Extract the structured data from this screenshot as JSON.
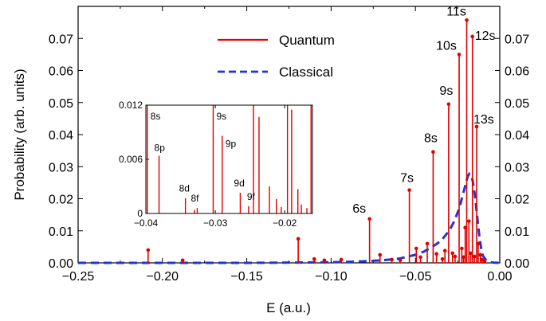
{
  "chart_data": {
    "type": "line",
    "xlabel": "E (a.u.)",
    "ylabel": "Probability (arb. units)",
    "xlim": [
      -0.25,
      0.0
    ],
    "ylim": [
      0.0,
      0.08
    ],
    "x_ticks": [
      -0.25,
      -0.2,
      -0.15,
      -0.1,
      -0.05,
      0.0
    ],
    "x_tick_labels": [
      "−0.25",
      "−0.20",
      "−0.15",
      "−0.10",
      "−0.05",
      "0.00"
    ],
    "y_ticks": [
      0.0,
      0.01,
      0.02,
      0.03,
      0.04,
      0.05,
      0.06,
      0.07
    ],
    "y_tick_labels": [
      "0.00",
      "0.01",
      "0.02",
      "0.03",
      "0.04",
      "0.05",
      "0.06",
      "0.07"
    ],
    "right_axis_mirrored": true,
    "grid": false,
    "legend_position": "top-center",
    "series": [
      {
        "name": "Quantum",
        "style": "stem",
        "color": "#e00000",
        "labeled_peaks": [
          {
            "label": "6s",
            "x": -0.0772,
            "y": 0.0137
          },
          {
            "label": "7s",
            "x": -0.0536,
            "y": 0.0227
          },
          {
            "label": "8s",
            "x": -0.0395,
            "y": 0.0346
          },
          {
            "label": "9s",
            "x": -0.0303,
            "y": 0.0495
          },
          {
            "label": "10s",
            "x": -0.0241,
            "y": 0.065
          },
          {
            "label": "11s",
            "x": -0.0196,
            "y": 0.0757
          },
          {
            "label": "12s",
            "x": -0.0162,
            "y": 0.0706
          },
          {
            "label": "13s",
            "x": -0.0137,
            "y": 0.0425
          }
        ],
        "other_stems": [
          {
            "x": -0.2085,
            "y": 0.004
          },
          {
            "x": -0.188,
            "y": 0.0008
          },
          {
            "x": -0.1195,
            "y": 0.0075
          },
          {
            "x": -0.11,
            "y": 0.0012
          },
          {
            "x": -0.104,
            "y": 0.0008
          },
          {
            "x": -0.094,
            "y": 0.001
          },
          {
            "x": -0.071,
            "y": 0.0025
          },
          {
            "x": -0.064,
            "y": 0.001
          },
          {
            "x": -0.059,
            "y": 0.0008
          },
          {
            "x": -0.0495,
            "y": 0.0045
          },
          {
            "x": -0.047,
            "y": 0.0018
          },
          {
            "x": -0.043,
            "y": 0.006
          },
          {
            "x": -0.0375,
            "y": 0.0028
          },
          {
            "x": -0.034,
            "y": 0.0012
          },
          {
            "x": -0.0325,
            "y": 0.0038
          },
          {
            "x": -0.028,
            "y": 0.003
          },
          {
            "x": -0.0265,
            "y": 0.002
          },
          {
            "x": -0.0225,
            "y": 0.0045
          },
          {
            "x": -0.0215,
            "y": 0.0018
          },
          {
            "x": -0.0205,
            "y": 0.011
          },
          {
            "x": -0.0183,
            "y": 0.013
          },
          {
            "x": -0.0172,
            "y": 0.003
          },
          {
            "x": -0.015,
            "y": 0.002
          },
          {
            "x": -0.0128,
            "y": 0.006
          },
          {
            "x": -0.0115,
            "y": 0.0025
          },
          {
            "x": -0.0105,
            "y": 0.001
          },
          {
            "x": -0.009,
            "y": 0.0006
          }
        ]
      },
      {
        "name": "Classical",
        "style": "dashed",
        "color": "#1f35d6",
        "x": [
          -0.25,
          -0.2,
          -0.15,
          -0.12,
          -0.1,
          -0.09,
          -0.08,
          -0.07,
          -0.06,
          -0.05,
          -0.045,
          -0.04,
          -0.035,
          -0.03,
          -0.027,
          -0.024,
          -0.022,
          -0.02,
          -0.019,
          -0.018,
          -0.017,
          -0.016,
          -0.015,
          -0.014,
          -0.013,
          -0.012,
          -0.011,
          -0.01,
          -0.008,
          -0.006,
          -0.004,
          0.0
        ],
        "y": [
          0.0,
          0.0,
          0.0,
          0.0001,
          0.0002,
          0.0003,
          0.0005,
          0.0008,
          0.0013,
          0.0025,
          0.0035,
          0.005,
          0.0068,
          0.01,
          0.013,
          0.017,
          0.021,
          0.025,
          0.027,
          0.0278,
          0.0275,
          0.0255,
          0.022,
          0.0175,
          0.0125,
          0.008,
          0.0045,
          0.0022,
          0.0008,
          0.0003,
          0.0001,
          0.0
        ]
      }
    ],
    "inset": {
      "position": "upper-left",
      "xlim": [
        -0.04,
        -0.016
      ],
      "ylim": [
        0.0,
        0.012
      ],
      "x_ticks": [
        -0.04,
        -0.03,
        -0.02
      ],
      "x_tick_labels": [
        "−0.04",
        "−0.03",
        "−0.02"
      ],
      "y_ticks": [
        0.0,
        0.006,
        0.012
      ],
      "y_tick_labels": [
        "0",
        "0.006",
        "0.012"
      ],
      "labeled_stems": [
        {
          "label": "8s",
          "x": -0.0398,
          "y": 0.012
        },
        {
          "label": "8p",
          "x": -0.0381,
          "y": 0.0064
        },
        {
          "label": "8d",
          "x": -0.0343,
          "y": 0.0017
        },
        {
          "label": "8f",
          "x": -0.0326,
          "y": 0.0006
        },
        {
          "label": "9s",
          "x": -0.0303,
          "y": 0.012
        },
        {
          "label": "9p",
          "x": -0.029,
          "y": 0.0086
        },
        {
          "label": "9d",
          "x": -0.0264,
          "y": 0.0023
        },
        {
          "label": "9f",
          "x": -0.0252,
          "y": 0.0008
        }
      ],
      "other_stems": [
        {
          "x": -0.033,
          "y": 0.0004
        },
        {
          "x": -0.0245,
          "y": 0.012
        },
        {
          "x": -0.0237,
          "y": 0.0107
        },
        {
          "x": -0.0222,
          "y": 0.003
        },
        {
          "x": -0.0212,
          "y": 0.0016
        },
        {
          "x": -0.0205,
          "y": 0.0007
        },
        {
          "x": -0.0196,
          "y": 0.012
        },
        {
          "x": -0.019,
          "y": 0.0115
        },
        {
          "x": -0.0181,
          "y": 0.0027
        },
        {
          "x": -0.0176,
          "y": 0.001
        },
        {
          "x": -0.0168,
          "y": 0.0006
        },
        {
          "x": -0.0162,
          "y": 0.012
        }
      ]
    }
  }
}
